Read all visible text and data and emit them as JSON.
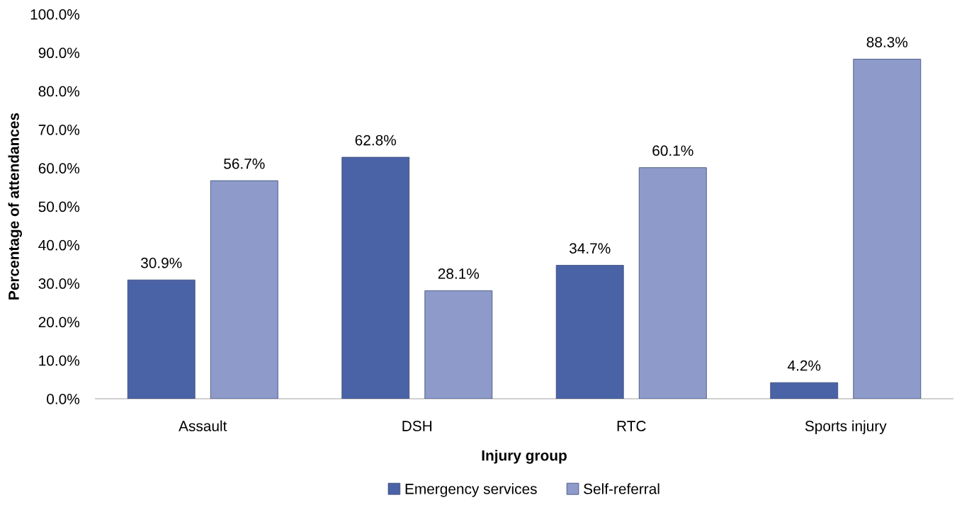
{
  "chart_data": {
    "type": "bar",
    "xlabel": "Injury group",
    "ylabel": "Percentage of attendances",
    "categories": [
      "Assault",
      "DSH",
      "RTC",
      "Sports injury"
    ],
    "series": [
      {
        "name": "Emergency services",
        "color": "#4a62a6",
        "values": [
          30.9,
          62.8,
          34.7,
          4.2
        ],
        "value_labels": [
          "30.9%",
          "62.8%",
          "34.7%",
          "4.2%"
        ]
      },
      {
        "name": "Self-referral",
        "color": "#8e9bca",
        "values": [
          56.7,
          28.1,
          60.1,
          88.3
        ],
        "value_labels": [
          "56.7%",
          "28.1%",
          "60.1%",
          "88.3%"
        ]
      }
    ],
    "ylim": [
      0,
      100
    ],
    "yticks": [
      {
        "value": 0,
        "label": "0.0%"
      },
      {
        "value": 10,
        "label": "10.0%"
      },
      {
        "value": 20,
        "label": "20.0%"
      },
      {
        "value": 30,
        "label": "30.0%"
      },
      {
        "value": 40,
        "label": "40.0%"
      },
      {
        "value": 50,
        "label": "50.0%"
      },
      {
        "value": 60,
        "label": "60.0%"
      },
      {
        "value": 70,
        "label": "70.0%"
      },
      {
        "value": 80,
        "label": "80.0%"
      },
      {
        "value": 90,
        "label": "90.0%"
      },
      {
        "value": 100,
        "label": "100.0%"
      }
    ],
    "legend": "bottom"
  }
}
